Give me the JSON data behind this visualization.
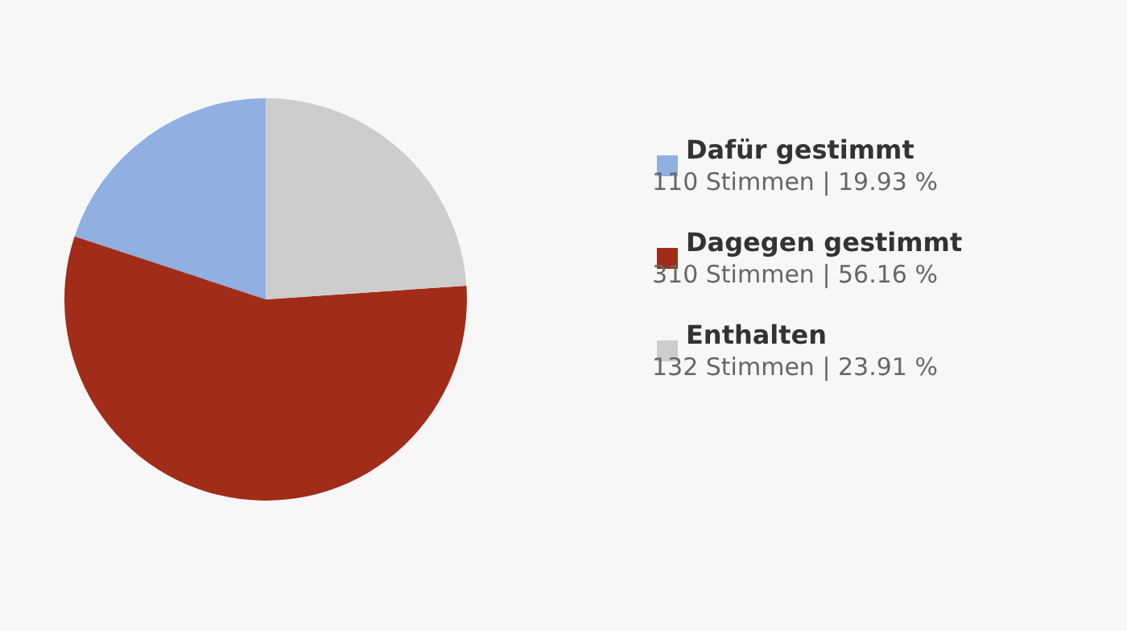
{
  "chart_data": {
    "type": "pie",
    "categories": [
      "Dafür gestimmt",
      "Dagegen gestimmt",
      "Enthalten"
    ],
    "values": [
      110,
      310,
      132
    ],
    "value_labels": [
      "110 Stimmen | 19.93 %",
      "310 Stimmen | 56.16 %",
      "132 Stimmen | 23.91 %"
    ],
    "colors": [
      "#8fb0e0",
      "#a12c1a",
      "#cdcdcd"
    ],
    "legend": "right"
  }
}
